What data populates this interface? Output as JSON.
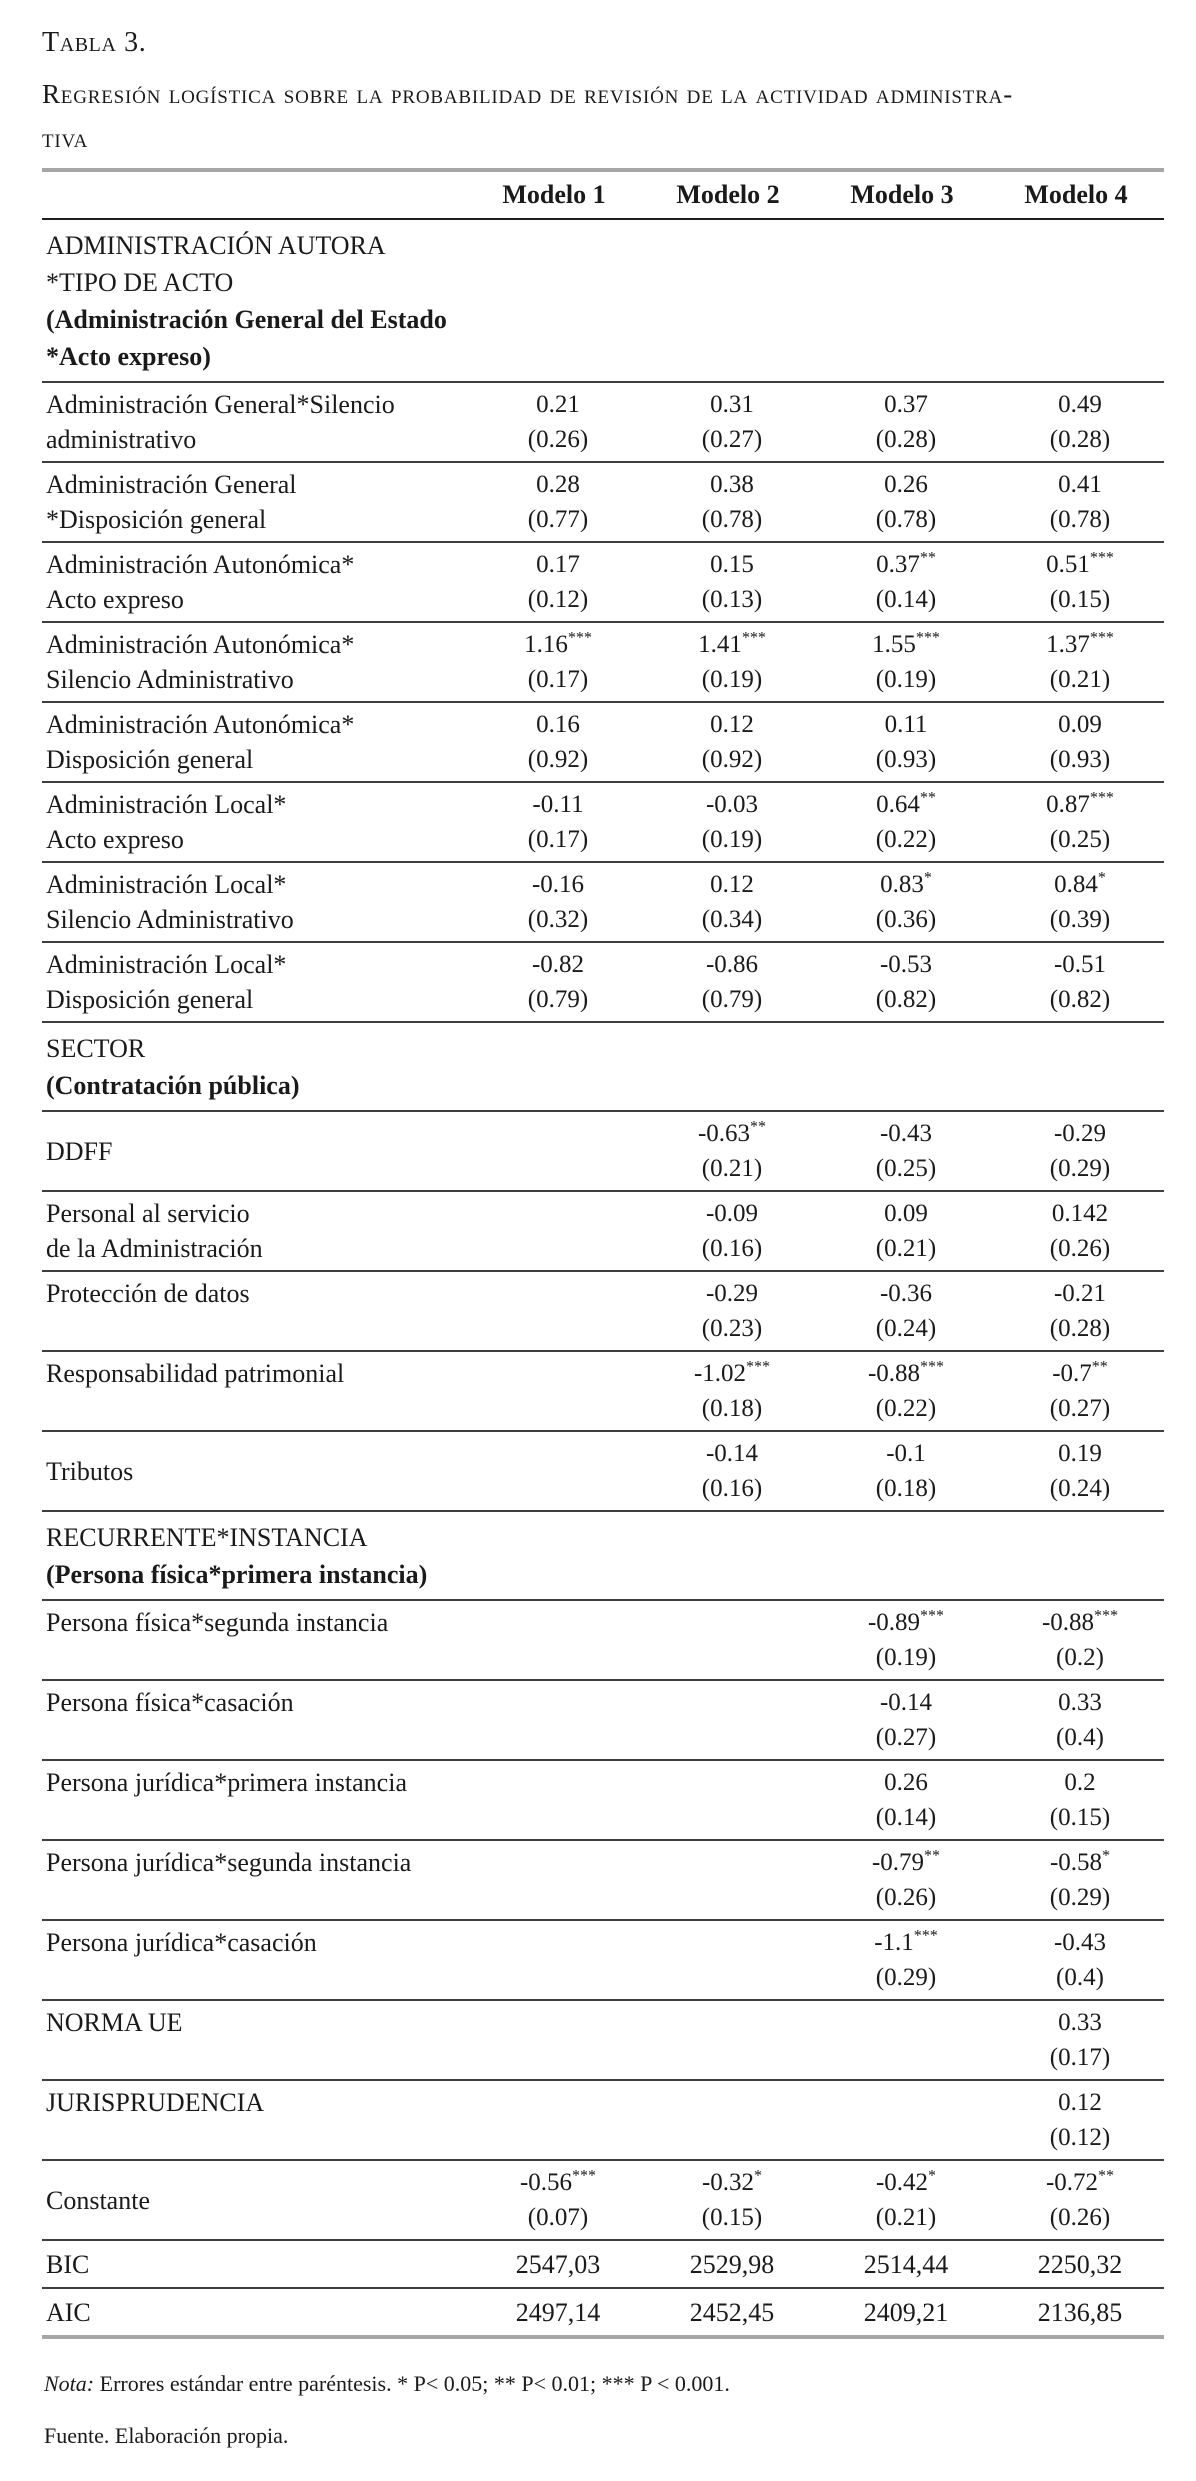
{
  "title": "Tabla 3.",
  "caption_line1": "Regresión logística sobre la probabilidad de revisión de la actividad administra-",
  "caption_line2": "tiva",
  "columns": [
    "Modelo 1",
    "Modelo 2",
    "Modelo 3",
    "Modelo 4"
  ],
  "colors": {
    "rule_heavy": "#a6a6a6",
    "rule_thin": "#3e3e3e",
    "rule_header": "#1d1d1d",
    "text": "#1a1a1a",
    "background": "#ffffff"
  },
  "table": {
    "rows": [
      {
        "type": "section",
        "lines": [
          {
            "text": "ADMINISTRACIÓN AUTORA",
            "bold": false
          },
          {
            "text": "*TIPO DE ACTO",
            "bold": false
          },
          {
            "text": "(Administración General del Estado",
            "bold": true
          },
          {
            "text": "*Acto expreso)",
            "bold": true
          }
        ]
      },
      {
        "type": "data",
        "label": [
          "Administración General*Silencio",
          "administrativo"
        ],
        "cells": [
          {
            "c": "0.21",
            "s": "",
            "se": "(0.26)"
          },
          {
            "c": "0.31",
            "s": "",
            "se": "(0.27)"
          },
          {
            "c": "0.37",
            "s": "",
            "se": "(0.28)"
          },
          {
            "c": "0.49",
            "s": "",
            "se": "(0.28)"
          }
        ]
      },
      {
        "type": "data",
        "label": [
          "Administración General",
          "*Disposición general"
        ],
        "cells": [
          {
            "c": "0.28",
            "s": "",
            "se": "(0.77)"
          },
          {
            "c": "0.38",
            "s": "",
            "se": "(0.78)"
          },
          {
            "c": "0.26",
            "s": "",
            "se": "(0.78)"
          },
          {
            "c": "0.41",
            "s": "",
            "se": "(0.78)"
          }
        ]
      },
      {
        "type": "data",
        "label": [
          "Administración Autonómica*",
          "Acto expreso"
        ],
        "cells": [
          {
            "c": "0.17",
            "s": "",
            "se": "(0.12)"
          },
          {
            "c": "0.15",
            "s": "",
            "se": "(0.13)"
          },
          {
            "c": "0.37",
            "s": "**",
            "se": "(0.14)"
          },
          {
            "c": "0.51",
            "s": "***",
            "se": "(0.15)"
          }
        ]
      },
      {
        "type": "data",
        "label": [
          "Administración Autonómica*",
          "Silencio Administrativo"
        ],
        "cells": [
          {
            "c": "1.16",
            "s": "***",
            "se": "(0.17)"
          },
          {
            "c": "1.41",
            "s": "***",
            "se": "(0.19)"
          },
          {
            "c": "1.55",
            "s": "***",
            "se": "(0.19)"
          },
          {
            "c": "1.37",
            "s": "***",
            "se": "(0.21)"
          }
        ]
      },
      {
        "type": "data",
        "label": [
          "Administración Autonómica*",
          "Disposición general"
        ],
        "cells": [
          {
            "c": "0.16",
            "s": "",
            "se": "(0.92)"
          },
          {
            "c": "0.12",
            "s": "",
            "se": "(0.92)"
          },
          {
            "c": "0.11",
            "s": "",
            "se": "(0.93)"
          },
          {
            "c": "0.09",
            "s": "",
            "se": "(0.93)"
          }
        ]
      },
      {
        "type": "data",
        "label": [
          "Administración Local*",
          "Acto expreso"
        ],
        "cells": [
          {
            "c": "-0.11",
            "s": "",
            "se": "(0.17)"
          },
          {
            "c": "-0.03",
            "s": "",
            "se": "(0.19)"
          },
          {
            "c": "0.64",
            "s": "**",
            "se": "(0.22)"
          },
          {
            "c": "0.87",
            "s": "***",
            "se": "(0.25)"
          }
        ]
      },
      {
        "type": "data",
        "label": [
          "Administración Local*",
          "Silencio Administrativo"
        ],
        "cells": [
          {
            "c": "-0.16",
            "s": "",
            "se": "(0.32)"
          },
          {
            "c": "0.12",
            "s": "",
            "se": "(0.34)"
          },
          {
            "c": "0.83",
            "s": "*",
            "se": "(0.36)"
          },
          {
            "c": "0.84",
            "s": "*",
            "se": "(0.39)"
          }
        ]
      },
      {
        "type": "data",
        "label": [
          "Administración Local*",
          "Disposición general"
        ],
        "cells": [
          {
            "c": "-0.82",
            "s": "",
            "se": "(0.79)"
          },
          {
            "c": "-0.86",
            "s": "",
            "se": "(0.79)"
          },
          {
            "c": "-0.53",
            "s": "",
            "se": "(0.82)"
          },
          {
            "c": "-0.51",
            "s": "",
            "se": "(0.82)"
          }
        ]
      },
      {
        "type": "section",
        "lines": [
          {
            "text": "SECTOR",
            "bold": false
          },
          {
            "text": "(Contratación pública)",
            "bold": true
          }
        ]
      },
      {
        "type": "data",
        "align": "center",
        "label": [
          "DDFF"
        ],
        "cells": [
          null,
          {
            "c": "-0.63",
            "s": "**",
            "se": "(0.21)"
          },
          {
            "c": "-0.43",
            "s": "",
            "se": "(0.25)"
          },
          {
            "c": "-0.29",
            "s": "",
            "se": "(0.29)"
          }
        ]
      },
      {
        "type": "data",
        "label": [
          "Personal al servicio",
          "de la Administración"
        ],
        "cells": [
          null,
          {
            "c": "-0.09",
            "s": "",
            "se": "(0.16)"
          },
          {
            "c": "0.09",
            "s": "",
            "se": "(0.21)"
          },
          {
            "c": "0.142",
            "s": "",
            "se": "(0.26)"
          }
        ]
      },
      {
        "type": "data",
        "label": [
          "Protección de datos"
        ],
        "cells": [
          null,
          {
            "c": "-0.29",
            "s": "",
            "se": "(0.23)"
          },
          {
            "c": "-0.36",
            "s": "",
            "se": "(0.24)"
          },
          {
            "c": "-0.21",
            "s": "",
            "se": "(0.28)"
          }
        ]
      },
      {
        "type": "data",
        "label": [
          "Responsabilidad patrimonial"
        ],
        "cells": [
          null,
          {
            "c": "-1.02",
            "s": "***",
            "se": "(0.18)"
          },
          {
            "c": "-0.88",
            "s": "***",
            "se": "(0.22)"
          },
          {
            "c": "-0.7",
            "s": "**",
            "se": "(0.27)"
          }
        ]
      },
      {
        "type": "data",
        "align": "center",
        "label": [
          "Tributos"
        ],
        "cells": [
          null,
          {
            "c": "-0.14",
            "s": "",
            "se": "(0.16)"
          },
          {
            "c": "-0.1",
            "s": "",
            "se": "(0.18)"
          },
          {
            "c": "0.19",
            "s": "",
            "se": "(0.24)"
          }
        ]
      },
      {
        "type": "section",
        "lines": [
          {
            "text": "RECURRENTE*INSTANCIA",
            "bold": false
          },
          {
            "text": "(Persona física*primera instancia)",
            "bold": true
          }
        ]
      },
      {
        "type": "data",
        "label": [
          "Persona física*segunda instancia"
        ],
        "cells": [
          null,
          null,
          {
            "c": "-0.89",
            "s": "***",
            "se": "(0.19)"
          },
          {
            "c": "-0.88",
            "s": "***",
            "se": "(0.2)"
          }
        ]
      },
      {
        "type": "data",
        "label": [
          "Persona física*casación"
        ],
        "cells": [
          null,
          null,
          {
            "c": "-0.14",
            "s": "",
            "se": "(0.27)"
          },
          {
            "c": "0.33",
            "s": "",
            "se": "(0.4)"
          }
        ]
      },
      {
        "type": "data",
        "label": [
          "Persona jurídica*primera instancia"
        ],
        "cells": [
          null,
          null,
          {
            "c": "0.26",
            "s": "",
            "se": "(0.14)"
          },
          {
            "c": "0.2",
            "s": "",
            "se": "(0.15)"
          }
        ]
      },
      {
        "type": "data",
        "label": [
          "Persona jurídica*segunda instancia"
        ],
        "cells": [
          null,
          null,
          {
            "c": "-0.79",
            "s": "**",
            "se": "(0.26)"
          },
          {
            "c": "-0.58",
            "s": "*",
            "se": "(0.29)"
          }
        ]
      },
      {
        "type": "data",
        "label": [
          "Persona jurídica*casación"
        ],
        "cells": [
          null,
          null,
          {
            "c": "-1.1",
            "s": "***",
            "se": "(0.29)"
          },
          {
            "c": "-0.43",
            "s": "",
            "se": "(0.4)"
          }
        ]
      },
      {
        "type": "data",
        "label": [
          "NORMA UE"
        ],
        "cells": [
          null,
          null,
          null,
          {
            "c": "0.33",
            "s": "",
            "se": "(0.17)"
          }
        ]
      },
      {
        "type": "data",
        "label": [
          "JURISPRUDENCIA"
        ],
        "cells": [
          null,
          null,
          null,
          {
            "c": "0.12",
            "s": "",
            "se": "(0.12)"
          }
        ]
      },
      {
        "type": "data",
        "align": "center",
        "label": [
          "Constante"
        ],
        "cells": [
          {
            "c": "-0.56",
            "s": "***",
            "se": "(0.07)"
          },
          {
            "c": "-0.32",
            "s": "*",
            "se": "(0.15)"
          },
          {
            "c": "-0.42",
            "s": "*",
            "se": "(0.21)"
          },
          {
            "c": "-0.72",
            "s": "**",
            "se": "(0.26)"
          }
        ]
      },
      {
        "type": "stat",
        "label": [
          "BIC"
        ],
        "cells": [
          "2547,03",
          "2529,98",
          "2514,44",
          "2250,32"
        ]
      },
      {
        "type": "stat",
        "label": [
          "AIC"
        ],
        "cells": [
          "2497,14",
          "2452,45",
          "2409,21",
          "2136,85"
        ],
        "bottom": true
      }
    ]
  },
  "notes": {
    "nota_label": "Nota:",
    "nota_text": " Errores estándar entre paréntesis. * P< 0.05; ** P< 0.01; *** P < 0.001.",
    "fuente": "Fuente. Elaboración propia."
  }
}
